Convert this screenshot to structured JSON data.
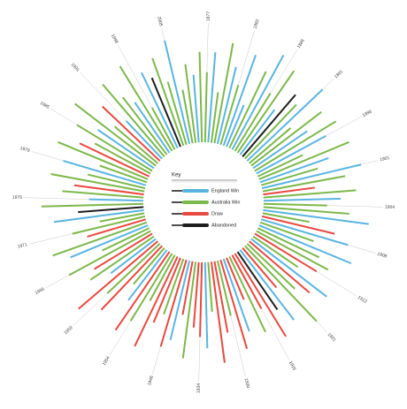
{
  "chart_data": {
    "type": "radial-bar",
    "legend_title": "Key",
    "series": [
      {
        "name": "England Win",
        "color": "#5ab4e2"
      },
      {
        "name": "Australia Win",
        "color": "#7cb84a"
      },
      {
        "name": "Draw",
        "color": "#e8483f"
      },
      {
        "name": "Abandoned",
        "color": "#1e1e1e"
      }
    ],
    "ylim": [
      0,
      100
    ],
    "categories": [
      "1877",
      null,
      null,
      null,
      null,
      "1882",
      null,
      null,
      null,
      null,
      "1886",
      null,
      null,
      null,
      null,
      "1891",
      null,
      null,
      null,
      null,
      "1896",
      null,
      null,
      null,
      null,
      "1901",
      null,
      null,
      null,
      null,
      "1904",
      null,
      null,
      null,
      null,
      "1908",
      null,
      null,
      null,
      null,
      "1912",
      null,
      null,
      null,
      null,
      "1921",
      null,
      null,
      null,
      null,
      "1925",
      null,
      null,
      null,
      null,
      "1930",
      null,
      null,
      null,
      null,
      "1934",
      null,
      null,
      null,
      null,
      "1948",
      null,
      null,
      null,
      null,
      "1954",
      null,
      null,
      null,
      null,
      "1959",
      null,
      null,
      null,
      null,
      "1965",
      null,
      null,
      null,
      null,
      "1971",
      null,
      null,
      null,
      null,
      "1975",
      null,
      null,
      null,
      null,
      "1979",
      null,
      null,
      null,
      null,
      "1985",
      null,
      null,
      null,
      null,
      "1991",
      null,
      null,
      null,
      null,
      "1998",
      null,
      null,
      null,
      null,
      "2005",
      null,
      null,
      null,
      null
    ],
    "values": [
      62,
      80,
      45,
      90,
      70,
      55,
      85,
      40,
      75,
      95,
      60,
      88,
      50,
      72,
      66,
      92,
      48,
      78,
      58,
      84,
      70,
      44,
      86,
      64,
      52,
      90,
      74,
      46,
      82,
      68,
      56,
      76,
      94,
      42,
      66,
      80,
      50,
      88,
      60,
      72,
      64,
      48,
      84,
      70,
      58,
      92,
      46,
      78,
      62,
      86,
      54,
      74,
      40,
      68,
      82,
      50,
      64,
      90,
      44,
      76,
      66,
      58,
      86,
      48,
      72,
      80,
      52,
      62,
      88,
      46,
      70,
      84,
      56,
      42,
      78,
      64,
      92,
      50,
      68,
      60,
      82,
      46,
      74,
      88,
      54,
      66,
      40,
      80,
      58,
      90,
      48,
      72,
      62,
      84,
      52,
      76,
      44,
      86,
      68,
      56,
      78,
      60,
      90,
      50,
      70,
      46,
      84,
      64,
      54,
      88,
      42,
      74,
      66,
      82,
      58,
      94,
      48,
      70,
      60,
      80
    ],
    "outcomes": [
      1,
      0,
      1,
      1,
      0,
      1,
      0,
      0,
      1,
      0,
      1,
      1,
      0,
      3,
      1,
      0,
      1,
      1,
      0,
      1,
      0,
      1,
      1,
      0,
      1,
      0,
      1,
      2,
      1,
      0,
      1,
      1,
      0,
      1,
      2,
      0,
      1,
      0,
      1,
      1,
      2,
      1,
      0,
      2,
      1,
      1,
      2,
      0,
      3,
      2,
      2,
      1,
      2,
      0,
      2,
      1,
      2,
      2,
      1,
      0,
      2,
      2,
      1,
      2,
      0,
      2,
      1,
      2,
      2,
      1,
      1,
      2,
      0,
      1,
      2,
      1,
      2,
      0,
      1,
      2,
      1,
      1,
      0,
      1,
      2,
      1,
      1,
      0,
      3,
      1,
      0,
      1,
      2,
      1,
      1,
      0,
      1,
      1,
      2,
      1,
      1,
      0,
      1,
      1,
      2,
      0,
      1,
      1,
      0,
      1,
      1,
      0,
      3,
      1,
      1,
      0,
      1,
      1,
      0,
      1
    ]
  }
}
